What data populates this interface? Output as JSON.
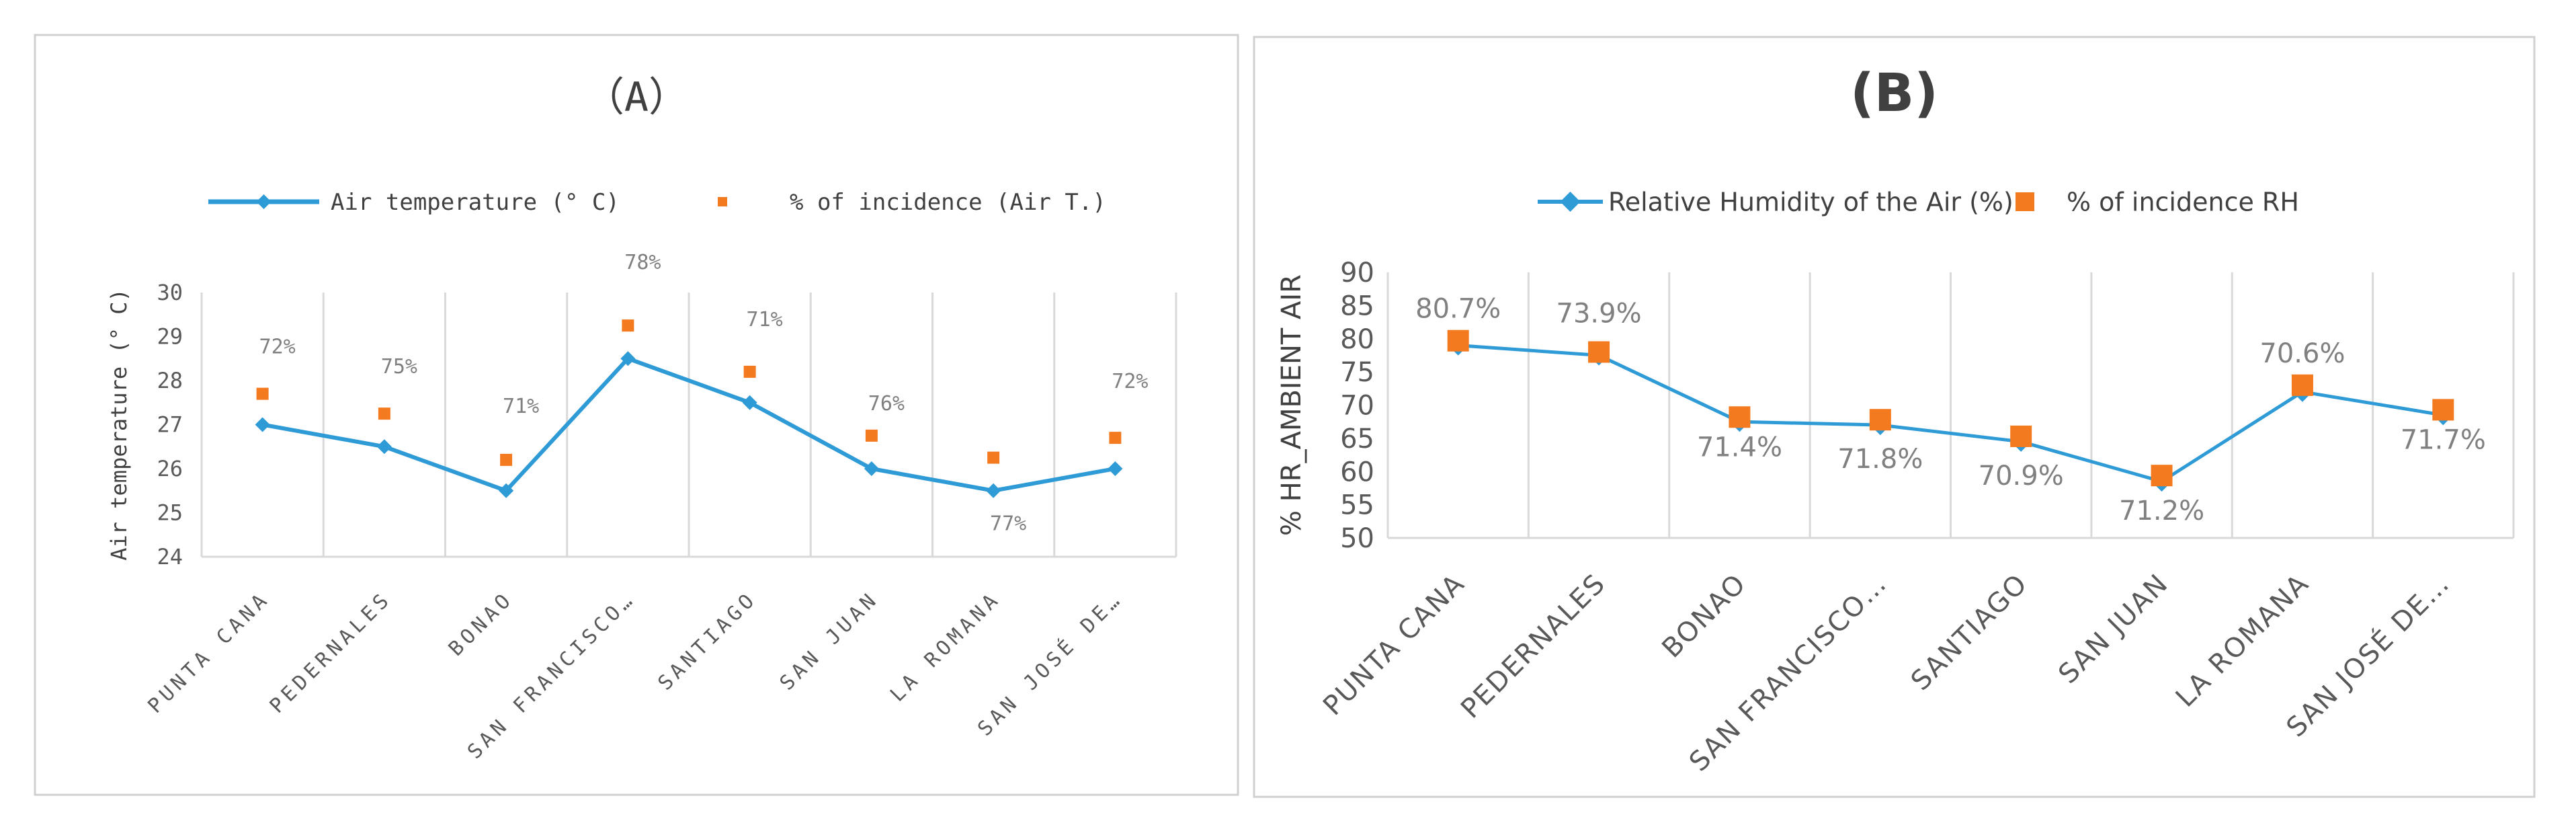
{
  "chart_data": [
    {
      "type": "line",
      "title": "（A）",
      "categories": [
        "PUNTA CANA",
        "PEDERNALES",
        "BONAO",
        "SAN FRANCISCO…",
        "SANTIAGO",
        "SAN JUAN",
        "LA ROMANA",
        "SAN JOSÉ DE…"
      ],
      "series": [
        {
          "name": "Air temperature (° C)",
          "values": [
            27,
            26.5,
            25.5,
            28.5,
            27.5,
            26,
            25.5,
            26
          ],
          "color": "#2e9bd6",
          "marker": "diamond"
        },
        {
          "name": "% of incidence (Air T.)",
          "values": [
            27.7,
            27.25,
            26.2,
            29.25,
            28.2,
            26.75,
            26.25,
            26.7
          ],
          "color": "#f47a20",
          "marker": "square"
        }
      ],
      "data_labels": [
        "72%",
        "75%",
        "71%",
        "78%",
        "71%",
        "76%",
        "77%",
        "72%"
      ],
      "xlabel": "",
      "ylabel": "Air temperature (° C)",
      "ylim": [
        24,
        30
      ],
      "yticks": [
        24,
        25,
        26,
        27,
        28,
        29,
        30
      ],
      "legend": "top",
      "grid": "vertical"
    },
    {
      "type": "line",
      "title": "(B)",
      "categories": [
        "PUNTA CANA",
        "PEDERNALES",
        "BONAO",
        "SAN FRANCISCO…",
        "SANTIAGO",
        "SAN JUAN",
        "LA ROMANA",
        "SAN JOSÉ DE…"
      ],
      "series": [
        {
          "name": "Relative Humidity of the Air (%)",
          "values": [
            79,
            77.5,
            67.5,
            67,
            64.5,
            58.5,
            72,
            68.5
          ],
          "color": "#2e9bd6",
          "marker": "diamond"
        },
        {
          "name": "% of incidence RH",
          "values": [
            79.7,
            78,
            68.2,
            67.8,
            65.3,
            59.4,
            73,
            69.3
          ],
          "color": "#f47a20",
          "marker": "square"
        }
      ],
      "data_labels": [
        "80.7%",
        "73.9%",
        "71.4%",
        "71.8%",
        "70.9%",
        "71.2%",
        "70.6%",
        "71.7%"
      ],
      "xlabel": "",
      "ylabel": "% HR_AMBIENT AIR",
      "ylim": [
        50,
        90
      ],
      "yticks": [
        50,
        55,
        60,
        65,
        70,
        75,
        80,
        85,
        90
      ],
      "legend": "top",
      "grid": "vertical"
    }
  ]
}
